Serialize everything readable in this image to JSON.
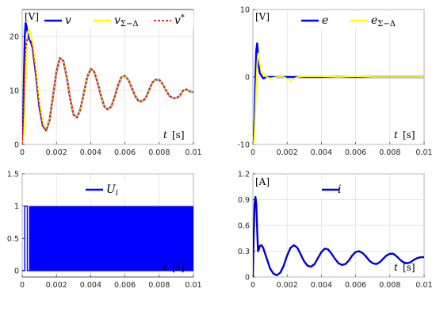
{
  "chart_data": [
    {
      "type": "line",
      "unit_label": "[V]",
      "xlabel_symbol": "t",
      "xlabel_unit": "[s]",
      "xlim": [
        0,
        0.01
      ],
      "ylim": [
        0,
        25
      ],
      "xticks": [
        0,
        0.002,
        0.004,
        0.006,
        0.008,
        0.01
      ],
      "xtick_labels": [
        "0",
        "0.002",
        "0.004",
        "0.006",
        "0.008",
        "0.01"
      ],
      "yticks": [
        0,
        10,
        20
      ],
      "ytick_labels": [
        "0",
        "10",
        "20"
      ],
      "grid": true,
      "legend_position": "top",
      "series": [
        {
          "name": "v",
          "color": "#0000ff",
          "style": "solid",
          "x": [
            0,
            5e-05,
            0.0001,
            0.00015,
            0.0002,
            0.00025,
            0.0003,
            0.0004,
            0.0005,
            0.0006,
            0.0008,
            0.001,
            0.0012,
            0.0014,
            0.0016,
            0.0018,
            0.002,
            0.0022,
            0.0024,
            0.0026,
            0.0028,
            0.003,
            0.0032,
            0.0034,
            0.0036,
            0.0038,
            0.004,
            0.0042,
            0.0044,
            0.0046,
            0.0048,
            0.005,
            0.0052,
            0.0054,
            0.0056,
            0.0058,
            0.006,
            0.0062,
            0.0064,
            0.0066,
            0.0068,
            0.007,
            0.0072,
            0.0074,
            0.0076,
            0.0078,
            0.008,
            0.0082,
            0.0084,
            0.0086,
            0.0088,
            0.009,
            0.0092,
            0.0094,
            0.0096,
            0.0098,
            0.01
          ],
          "y": [
            0,
            3,
            12,
            20,
            22.5,
            22,
            21,
            19.5,
            19,
            18,
            13,
            7,
            3.5,
            2.6,
            4.5,
            9,
            13.5,
            16,
            15.5,
            12.5,
            8.5,
            5.5,
            5,
            6.5,
            9.5,
            12.5,
            14,
            13.5,
            11.5,
            9,
            7,
            6.5,
            7,
            8.8,
            11,
            12.5,
            12.7,
            12,
            10.5,
            9,
            8,
            8,
            8.5,
            10,
            11.5,
            12,
            12,
            11.2,
            10,
            9,
            8.6,
            8.6,
            9,
            10,
            10.2,
            9.8,
            9.7
          ]
        },
        {
          "name": "vΣ−Δ",
          "color": "#ffff00",
          "style": "solid",
          "x": [
            0,
            5e-05,
            0.0001,
            0.00015,
            0.0002,
            0.00025,
            0.0003,
            0.0004,
            0.0005,
            0.0006,
            0.0008,
            0.001,
            0.0012,
            0.0014,
            0.0016,
            0.0018,
            0.002,
            0.0022,
            0.0024,
            0.0026,
            0.0028,
            0.003,
            0.0032,
            0.0034,
            0.0036,
            0.0038,
            0.004,
            0.0042,
            0.0044,
            0.0046,
            0.0048,
            0.005,
            0.0052,
            0.0054,
            0.0056,
            0.0058,
            0.006,
            0.0062,
            0.0064,
            0.0066,
            0.0068,
            0.007,
            0.0072,
            0.0074,
            0.0076,
            0.0078,
            0.008,
            0.0082,
            0.0084,
            0.0086,
            0.0088,
            0.009,
            0.0092,
            0.0094,
            0.0096,
            0.0098,
            0.01
          ],
          "y": [
            0,
            0.5,
            2,
            6,
            11,
            17,
            20.5,
            21.5,
            20.5,
            19,
            14,
            8,
            4,
            2.7,
            4.5,
            9,
            13.5,
            16,
            15.5,
            12.5,
            8.5,
            5.5,
            5,
            6.5,
            9.5,
            12.5,
            14,
            13.5,
            11.5,
            9,
            7,
            6.5,
            7,
            8.8,
            11,
            12.5,
            12.7,
            12,
            10.5,
            9,
            8,
            8,
            8.5,
            10,
            11.5,
            12,
            12,
            11.2,
            10,
            9,
            8.6,
            8.6,
            9,
            10,
            10.2,
            9.8,
            9.7
          ]
        },
        {
          "name": "v*",
          "color": "#e8141e",
          "style": "dashed",
          "x": [
            0,
            5e-05,
            0.0001,
            0.00015,
            0.0002,
            0.00025,
            0.0003,
            0.0004,
            0.0005,
            0.0006,
            0.0008,
            0.001,
            0.0012,
            0.0014,
            0.0016,
            0.0018,
            0.002,
            0.0022,
            0.0024,
            0.0026,
            0.0028,
            0.003,
            0.0032,
            0.0034,
            0.0036,
            0.0038,
            0.004,
            0.0042,
            0.0044,
            0.0046,
            0.0048,
            0.005,
            0.0052,
            0.0054,
            0.0056,
            0.0058,
            0.006,
            0.0062,
            0.0064,
            0.0066,
            0.0068,
            0.007,
            0.0072,
            0.0074,
            0.0076,
            0.0078,
            0.008,
            0.0082,
            0.0084,
            0.0086,
            0.0088,
            0.009,
            0.0092,
            0.0094,
            0.0096,
            0.0098,
            0.01
          ],
          "y": [
            0,
            4,
            10,
            14.5,
            17.5,
            19,
            19.5,
            19.5,
            19,
            18,
            13,
            7,
            3.5,
            2.6,
            4.5,
            9,
            13.5,
            16,
            15.5,
            12.5,
            8.5,
            5.5,
            5,
            6.5,
            9.5,
            12.5,
            14,
            13.5,
            11.5,
            9,
            7,
            6.5,
            7,
            8.8,
            11,
            12.5,
            12.7,
            12,
            10.5,
            9,
            8,
            8,
            8.5,
            10,
            11.5,
            12,
            12,
            11.2,
            10,
            9,
            8.6,
            8.6,
            9,
            10,
            10.2,
            9.8,
            9.7
          ]
        }
      ]
    },
    {
      "type": "line",
      "unit_label": "[V]",
      "xlabel_symbol": "t",
      "xlabel_unit": "[s]",
      "xlim": [
        0,
        0.01
      ],
      "ylim": [
        -10,
        10
      ],
      "xticks": [
        0,
        0.002,
        0.004,
        0.006,
        0.008,
        0.01
      ],
      "xtick_labels": [
        "0",
        "0.002",
        "0.004",
        "0.006",
        "0.008",
        "0.01"
      ],
      "yticks": [
        -10,
        0,
        10
      ],
      "ytick_labels": [
        "-10",
        "0",
        "10"
      ],
      "grid": true,
      "legend_position": "top",
      "series": [
        {
          "name": "e",
          "color": "#0000ff",
          "style": "solid",
          "x": [
            0,
            5e-05,
            0.0001,
            0.00015,
            0.0002,
            0.00025,
            0.0003,
            0.00035,
            0.0004,
            0.0005,
            0.0006,
            0.0008,
            0.001,
            0.002,
            0.003,
            0.004,
            0.005,
            0.006,
            0.007,
            0.008,
            0.009,
            0.01
          ],
          "y": [
            -10,
            -9,
            -6,
            0,
            4,
            5,
            3.5,
            1.5,
            0.6,
            0.2,
            -0.2,
            0,
            0,
            0,
            0,
            0,
            0,
            0,
            0,
            0,
            0,
            0
          ]
        },
        {
          "name": "eΣ−Δ",
          "color": "#ffff00",
          "style": "solid",
          "x": [
            0,
            5e-05,
            0.0001,
            0.00015,
            0.0002,
            0.00025,
            0.0003,
            0.00035,
            0.0004,
            0.0005,
            0.0006,
            0.0008,
            0.001,
            0.0014,
            0.0018,
            0.0022,
            0.0026,
            0.003,
            0.004,
            0.005,
            0.006,
            0.007,
            0.008,
            0.009,
            0.01
          ],
          "y": [
            -10,
            -10,
            -8,
            -5,
            -1,
            2,
            3.5,
            3,
            2,
            1,
            0.4,
            0,
            -0.2,
            0,
            0,
            -0.5,
            0,
            0.1,
            0.1,
            0,
            0.1,
            0,
            0,
            0,
            0
          ]
        }
      ]
    },
    {
      "type": "line",
      "xlabel_symbol": "t",
      "xlabel_unit": "[s]",
      "xlim": [
        0,
        0.01
      ],
      "ylim": [
        -0.1,
        1.5
      ],
      "xticks": [
        0,
        0.002,
        0.004,
        0.006,
        0.008,
        0.01
      ],
      "xtick_labels": [
        "0",
        "0.002",
        "0.004",
        "0.006",
        "0.008",
        "0.01"
      ],
      "yticks": [
        0,
        0.5,
        1,
        1.5
      ],
      "ytick_labels": [
        "0",
        "0.5",
        "1",
        "1.5"
      ],
      "grid": true,
      "legend_position": "top",
      "series": [
        {
          "name": "Ui",
          "color": "#0000ff",
          "style": "switching",
          "x": [
            0,
            0.00015,
            0.00015,
            0.0003,
            0.0003,
            0.01
          ],
          "y": [
            0,
            0,
            1,
            1,
            0,
            0
          ],
          "band": [
            0.0004,
            0.01
          ]
        }
      ]
    },
    {
      "type": "line",
      "unit_label": "[A]",
      "xlabel_symbol": "t",
      "xlabel_unit": "[s]",
      "xlim": [
        0,
        0.01
      ],
      "ylim": [
        0,
        1.2
      ],
      "xticks": [
        0,
        0.002,
        0.004,
        0.006,
        0.008,
        0.01
      ],
      "xtick_labels": [
        "0",
        "0.002",
        "0.004",
        "0.006",
        "0.008",
        "0.01"
      ],
      "yticks": [
        0,
        0.3,
        0.6,
        0.9,
        1.2
      ],
      "ytick_labels": [
        "0",
        "0.3",
        "0.6",
        "0.9",
        "1.2"
      ],
      "grid": true,
      "legend_position": "top",
      "series": [
        {
          "name": "i",
          "color": "#0000cc",
          "style": "solid",
          "x": [
            0,
            5e-05,
            0.0001,
            0.00015,
            0.0002,
            0.00025,
            0.0003,
            0.00035,
            0.0004,
            0.0005,
            0.0006,
            0.0008,
            0.001,
            0.0012,
            0.0014,
            0.0016,
            0.0018,
            0.002,
            0.0022,
            0.0024,
            0.0026,
            0.0028,
            0.003,
            0.0032,
            0.0034,
            0.0036,
            0.0038,
            0.004,
            0.0042,
            0.0044,
            0.0046,
            0.0048,
            0.005,
            0.0052,
            0.0054,
            0.0056,
            0.0058,
            0.006,
            0.0062,
            0.0064,
            0.0066,
            0.0068,
            0.007,
            0.0072,
            0.0074,
            0.0076,
            0.0078,
            0.008,
            0.0082,
            0.0084,
            0.0086,
            0.0088,
            0.009,
            0.0092,
            0.0094,
            0.0096,
            0.0098,
            0.01
          ],
          "y": [
            0,
            0.5,
            0.85,
            0.93,
            0.85,
            0.55,
            0.3,
            0.32,
            0.36,
            0.37,
            0.34,
            0.22,
            0.1,
            0.04,
            0.02,
            0.05,
            0.13,
            0.25,
            0.34,
            0.37,
            0.34,
            0.26,
            0.18,
            0.13,
            0.12,
            0.15,
            0.22,
            0.29,
            0.33,
            0.32,
            0.27,
            0.21,
            0.16,
            0.14,
            0.15,
            0.19,
            0.25,
            0.29,
            0.3,
            0.28,
            0.24,
            0.19,
            0.16,
            0.15,
            0.17,
            0.21,
            0.25,
            0.27,
            0.27,
            0.24,
            0.2,
            0.17,
            0.16,
            0.17,
            0.2,
            0.22,
            0.23,
            0.23
          ]
        }
      ]
    }
  ]
}
